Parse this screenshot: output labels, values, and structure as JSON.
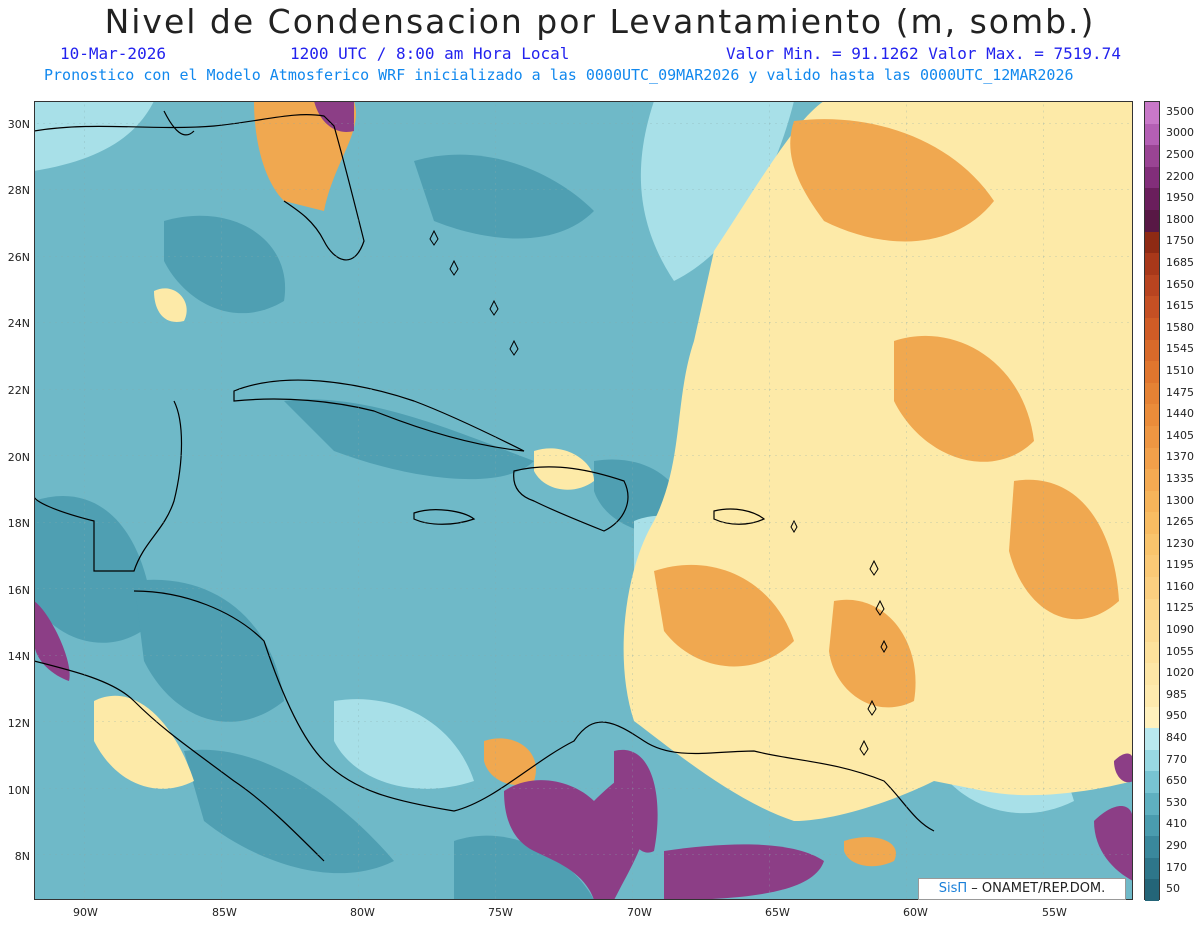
{
  "header": {
    "title": "Nivel de Condensacion por Levantamiento (m, somb.)",
    "date": "10-Mar-2026",
    "time": "1200 UTC / 8:00 am Hora Local",
    "min_max": "Valor Min. = 91.1262  Valor Max. = 7519.74",
    "model_info": "Pronostico con el Modelo Atmosferico WRF inicializado a las 0000UTC_09MAR2026 y valido hasta las  0000UTC_12MAR2026"
  },
  "axes": {
    "lat_labels": [
      "30N",
      "28N",
      "26N",
      "24N",
      "22N",
      "20N",
      "18N",
      "16N",
      "14N",
      "12N",
      "10N",
      "8N"
    ],
    "lon_labels": [
      "90W",
      "85W",
      "80W",
      "75W",
      "70W",
      "65W",
      "60W",
      "55W"
    ]
  },
  "colorbar": {
    "levels": [
      "3500",
      "3000",
      "2500",
      "2200",
      "1950",
      "1800",
      "1750",
      "1685",
      "1650",
      "1615",
      "1580",
      "1545",
      "1510",
      "1475",
      "1440",
      "1405",
      "1370",
      "1335",
      "1300",
      "1265",
      "1230",
      "1195",
      "1160",
      "1125",
      "1090",
      "1055",
      "1020",
      "985",
      "950",
      "840",
      "770",
      "650",
      "530",
      "410",
      "290",
      "170",
      "50"
    ],
    "colors": [
      "#c878c8",
      "#b45fb4",
      "#9a4494",
      "#822e7a",
      "#6a1e5c",
      "#581845",
      "#8e2a14",
      "#a8381a",
      "#b84420",
      "#c55024",
      "#d05c26",
      "#d86a2a",
      "#e0762e",
      "#e58234",
      "#ea8c3a",
      "#ee9642",
      "#f2a04a",
      "#f4aa52",
      "#f6b45a",
      "#f8bc62",
      "#f9c46c",
      "#fac976",
      "#fbcf80",
      "#fcd68a",
      "#fcdb93",
      "#fde19c",
      "#fde6a6",
      "#feeaae",
      "#fff1bd",
      "#b9e8ee",
      "#98d8e2",
      "#78c4d2",
      "#5fb0c0",
      "#4a9cae",
      "#3a889c",
      "#2e768a",
      "#246578"
    ]
  },
  "credit": {
    "sis": "SisΠ",
    "org": "– ONAMET/REP.DOM."
  }
}
